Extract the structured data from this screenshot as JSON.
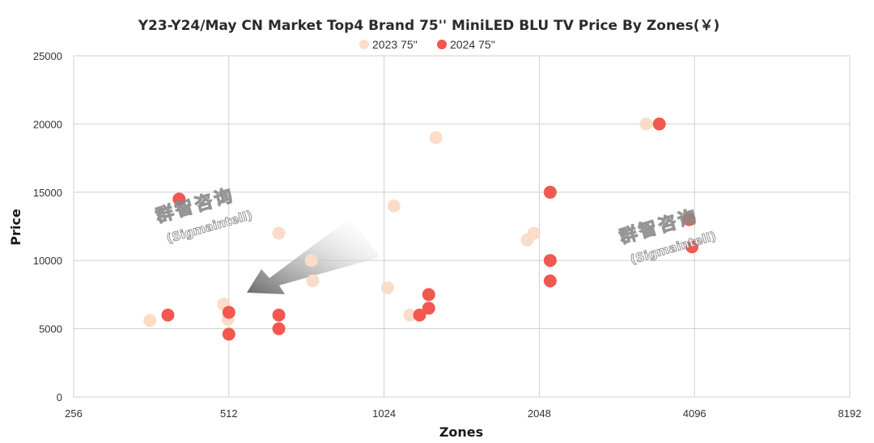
{
  "chart_data": {
    "type": "scatter",
    "title": "Y23-Y24/May CN Market Top4 Brand 75'' MiniLED BLU TV Price By Zones(￥)",
    "xlabel": "Zones",
    "ylabel": "Price",
    "x_scale": "log2",
    "xlim": [
      256,
      8192
    ],
    "ylim": [
      0,
      25000
    ],
    "x_ticks": [
      "256",
      "512",
      "1024",
      "2048",
      "4096",
      "8192"
    ],
    "y_ticks": [
      "0",
      "5000",
      "10000",
      "15000",
      "20000",
      "25000"
    ],
    "grid": true,
    "legend_position": "top",
    "series": [
      {
        "name": "2023  75''",
        "color": "#fbdcc9",
        "points": [
          {
            "x": 360,
            "y": 5600
          },
          {
            "x": 500,
            "y": 6800
          },
          {
            "x": 510,
            "y": 5700
          },
          {
            "x": 640,
            "y": 12000
          },
          {
            "x": 740,
            "y": 10000
          },
          {
            "x": 745,
            "y": 8500
          },
          {
            "x": 1040,
            "y": 8000
          },
          {
            "x": 1070,
            "y": 14000
          },
          {
            "x": 1150,
            "y": 6000
          },
          {
            "x": 1290,
            "y": 19000
          },
          {
            "x": 1940,
            "y": 11500
          },
          {
            "x": 2000,
            "y": 12000
          },
          {
            "x": 3300,
            "y": 20000
          }
        ]
      },
      {
        "name": "2024  75''",
        "color": "#f2584f",
        "points": [
          {
            "x": 390,
            "y": 6000
          },
          {
            "x": 410,
            "y": 14500
          },
          {
            "x": 512,
            "y": 6200
          },
          {
            "x": 512,
            "y": 4600
          },
          {
            "x": 640,
            "y": 6000
          },
          {
            "x": 640,
            "y": 5000
          },
          {
            "x": 1200,
            "y": 6000
          },
          {
            "x": 1250,
            "y": 6500
          },
          {
            "x": 1250,
            "y": 7500
          },
          {
            "x": 2150,
            "y": 15000
          },
          {
            "x": 2150,
            "y": 10000
          },
          {
            "x": 2150,
            "y": 8500
          },
          {
            "x": 3500,
            "y": 20000
          },
          {
            "x": 4000,
            "y": 13000
          },
          {
            "x": 4050,
            "y": 11000
          }
        ]
      }
    ]
  },
  "watermarks": [
    {
      "cn": "群智咨询",
      "en": "(Sigmaintell)"
    },
    {
      "cn": "群智咨询",
      "en": "(Sigmaintell)"
    }
  ]
}
